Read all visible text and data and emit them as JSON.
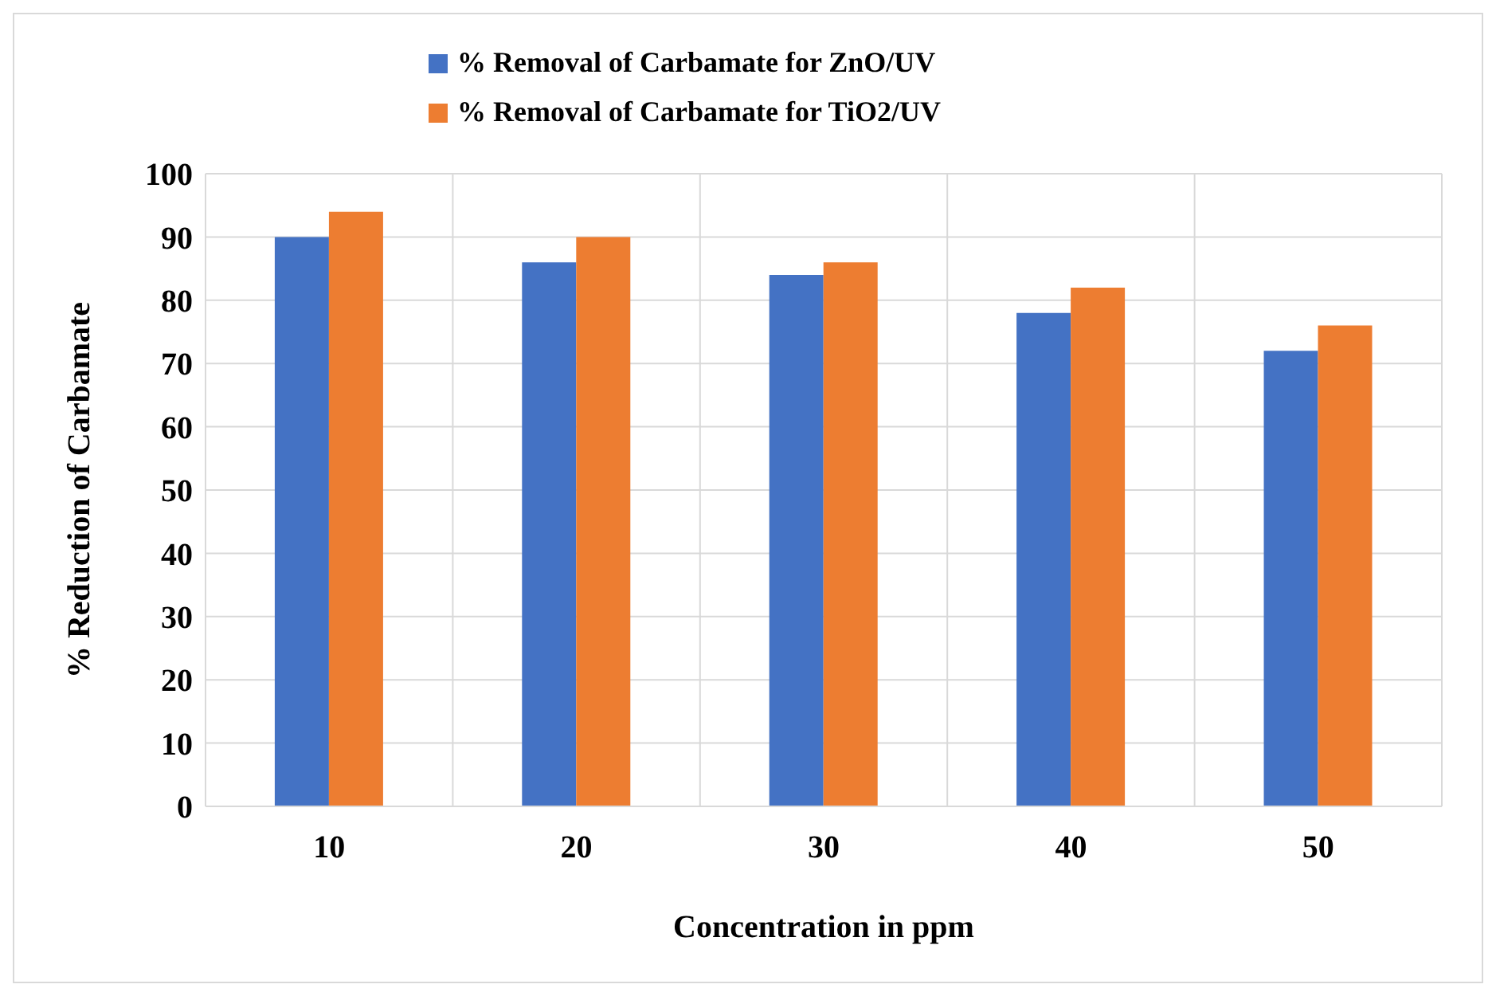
{
  "chart_data": {
    "type": "bar",
    "xlabel": "Concentration in ppm",
    "ylabel": "% Reduction of Carbamate",
    "categories": [
      "10",
      "20",
      "30",
      "40",
      "50"
    ],
    "series": [
      {
        "name": "% Removal of Carbamate for ZnO/UV",
        "color": "#4472c4",
        "values": [
          90,
          86,
          84,
          78,
          72
        ]
      },
      {
        "name": "% Removal of Carbamate for TiO2/UV",
        "color": "#ed7d31",
        "values": [
          94,
          90,
          86,
          82,
          76
        ]
      }
    ],
    "ylim": [
      0,
      100
    ],
    "yticks": [
      0,
      10,
      20,
      30,
      40,
      50,
      60,
      70,
      80,
      90,
      100
    ],
    "grid": true,
    "legend": "top"
  }
}
